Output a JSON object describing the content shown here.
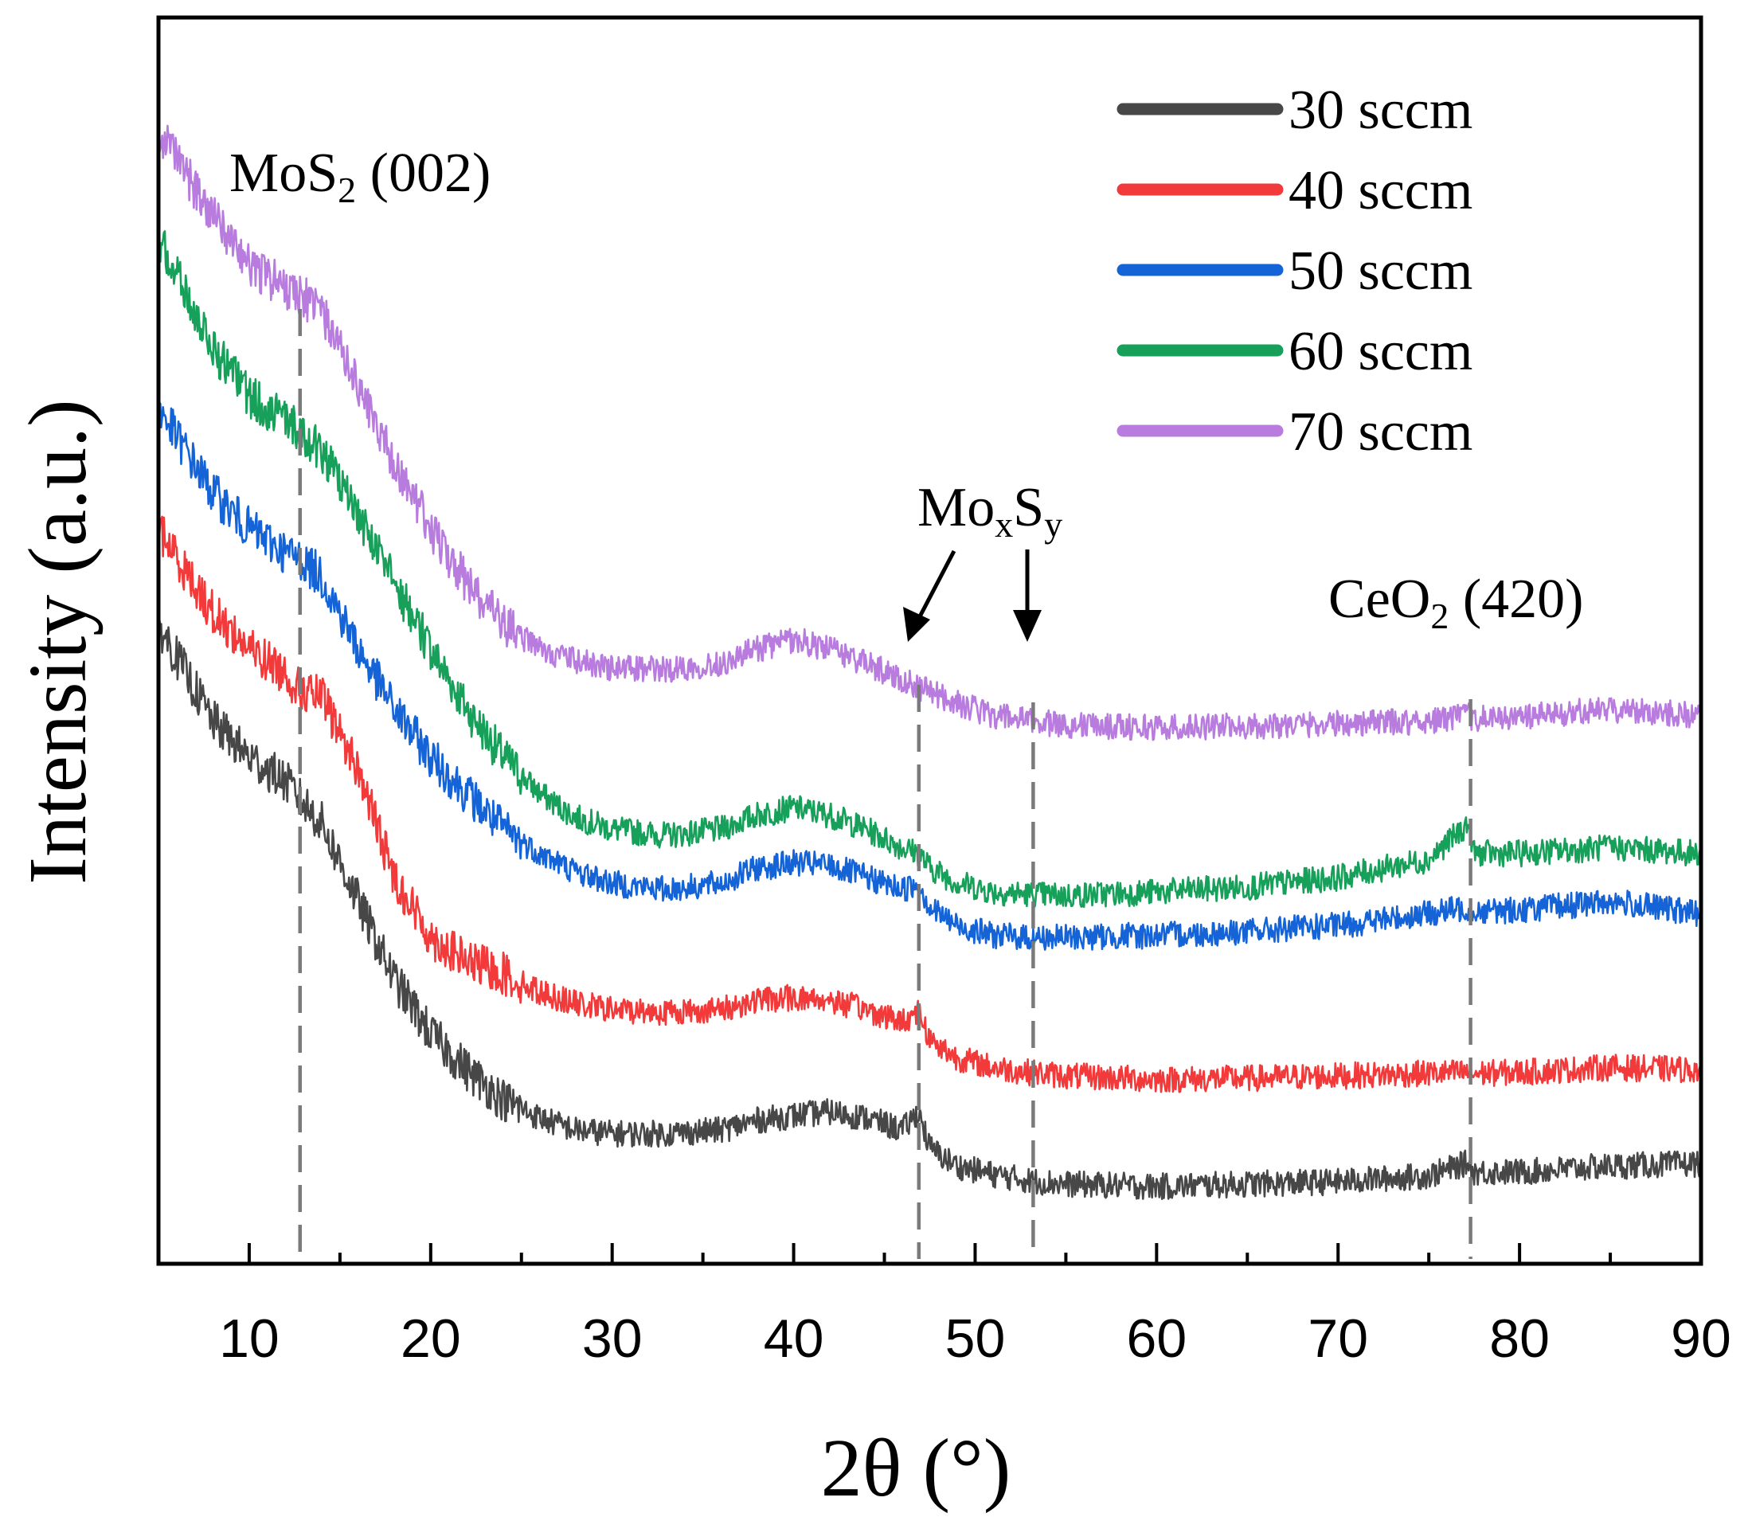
{
  "chart_data": {
    "type": "line",
    "title": "",
    "xlabel": "2θ (°)",
    "ylabel": "Intensity (a.u.)",
    "xlim": [
      5,
      90
    ],
    "ylim": [
      0,
      1
    ],
    "x_ticks": [
      "10",
      "20",
      "30",
      "40",
      "50",
      "60",
      "70",
      "80",
      "90"
    ],
    "x_tick_values": [
      10,
      20,
      30,
      40,
      50,
      60,
      70,
      80,
      90
    ],
    "y_ticks_visible": false,
    "legend_position": "top-right",
    "x": [
      5,
      8,
      10,
      12,
      12.8,
      14,
      16,
      18,
      20,
      22,
      24,
      26,
      28,
      30,
      33,
      36,
      38,
      40,
      42,
      44,
      46,
      46.9,
      47.5,
      49,
      51,
      53,
      55,
      60,
      65,
      70,
      75,
      77.2,
      77.5,
      80,
      85,
      90
    ],
    "series": [
      {
        "name": "30 sccm",
        "color": "#474747",
        "values": [
          0.52,
          0.44,
          0.41,
          0.39,
          0.375,
          0.355,
          0.29,
          0.225,
          0.18,
          0.15,
          0.125,
          0.11,
          0.1,
          0.097,
          0.097,
          0.1,
          0.108,
          0.112,
          0.115,
          0.11,
          0.1,
          0.115,
          0.085,
          0.07,
          0.063,
          0.058,
          0.055,
          0.053,
          0.055,
          0.057,
          0.062,
          0.073,
          0.065,
          0.065,
          0.07,
          0.072
        ]
      },
      {
        "name": "40 sccm",
        "color": "#f23a3a",
        "values": [
          0.6,
          0.53,
          0.5,
          0.48,
          0.465,
          0.46,
          0.4,
          0.31,
          0.26,
          0.24,
          0.23,
          0.215,
          0.205,
          0.2,
          0.198,
          0.2,
          0.208,
          0.21,
          0.208,
          0.2,
          0.19,
          0.2,
          0.175,
          0.16,
          0.152,
          0.148,
          0.145,
          0.142,
          0.143,
          0.145,
          0.147,
          0.148,
          0.147,
          0.148,
          0.152,
          0.15
        ]
      },
      {
        "name": "50 sccm",
        "color": "#1464d8",
        "values": [
          0.7,
          0.63,
          0.6,
          0.58,
          0.575,
          0.56,
          0.5,
          0.45,
          0.41,
          0.38,
          0.35,
          0.33,
          0.315,
          0.305,
          0.3,
          0.305,
          0.318,
          0.322,
          0.32,
          0.31,
          0.3,
          0.305,
          0.285,
          0.27,
          0.262,
          0.26,
          0.26,
          0.262,
          0.265,
          0.27,
          0.28,
          0.285,
          0.282,
          0.283,
          0.29,
          0.28
        ]
      },
      {
        "name": "60 sccm",
        "color": "#17a05a",
        "values": [
          0.84,
          0.75,
          0.71,
          0.69,
          0.68,
          0.665,
          0.61,
          0.555,
          0.5,
          0.45,
          0.41,
          0.38,
          0.36,
          0.35,
          0.345,
          0.35,
          0.362,
          0.368,
          0.362,
          0.35,
          0.335,
          0.33,
          0.318,
          0.306,
          0.298,
          0.296,
          0.295,
          0.298,
          0.302,
          0.31,
          0.325,
          0.355,
          0.33,
          0.33,
          0.335,
          0.33
        ]
      },
      {
        "name": "70 sccm",
        "color": "#b87bde",
        "values": [
          0.93,
          0.86,
          0.82,
          0.8,
          0.795,
          0.78,
          0.72,
          0.655,
          0.6,
          0.555,
          0.52,
          0.5,
          0.49,
          0.484,
          0.483,
          0.488,
          0.5,
          0.508,
          0.5,
          0.488,
          0.475,
          0.468,
          0.465,
          0.455,
          0.445,
          0.44,
          0.437,
          0.435,
          0.436,
          0.438,
          0.44,
          0.445,
          0.442,
          0.443,
          0.45,
          0.445
        ]
      }
    ],
    "reference_lines": [
      12.8,
      46.9,
      53.2,
      77.3
    ],
    "annotations": {
      "mos2": {
        "main": "MoS",
        "sub": "2",
        "rest": " (002)"
      },
      "moxsy": {
        "mo": "Mo",
        "x": "x",
        "s": "S",
        "y": "y"
      },
      "ceo2": {
        "main": "CeO",
        "sub": "2",
        "rest": " (420)"
      }
    }
  }
}
